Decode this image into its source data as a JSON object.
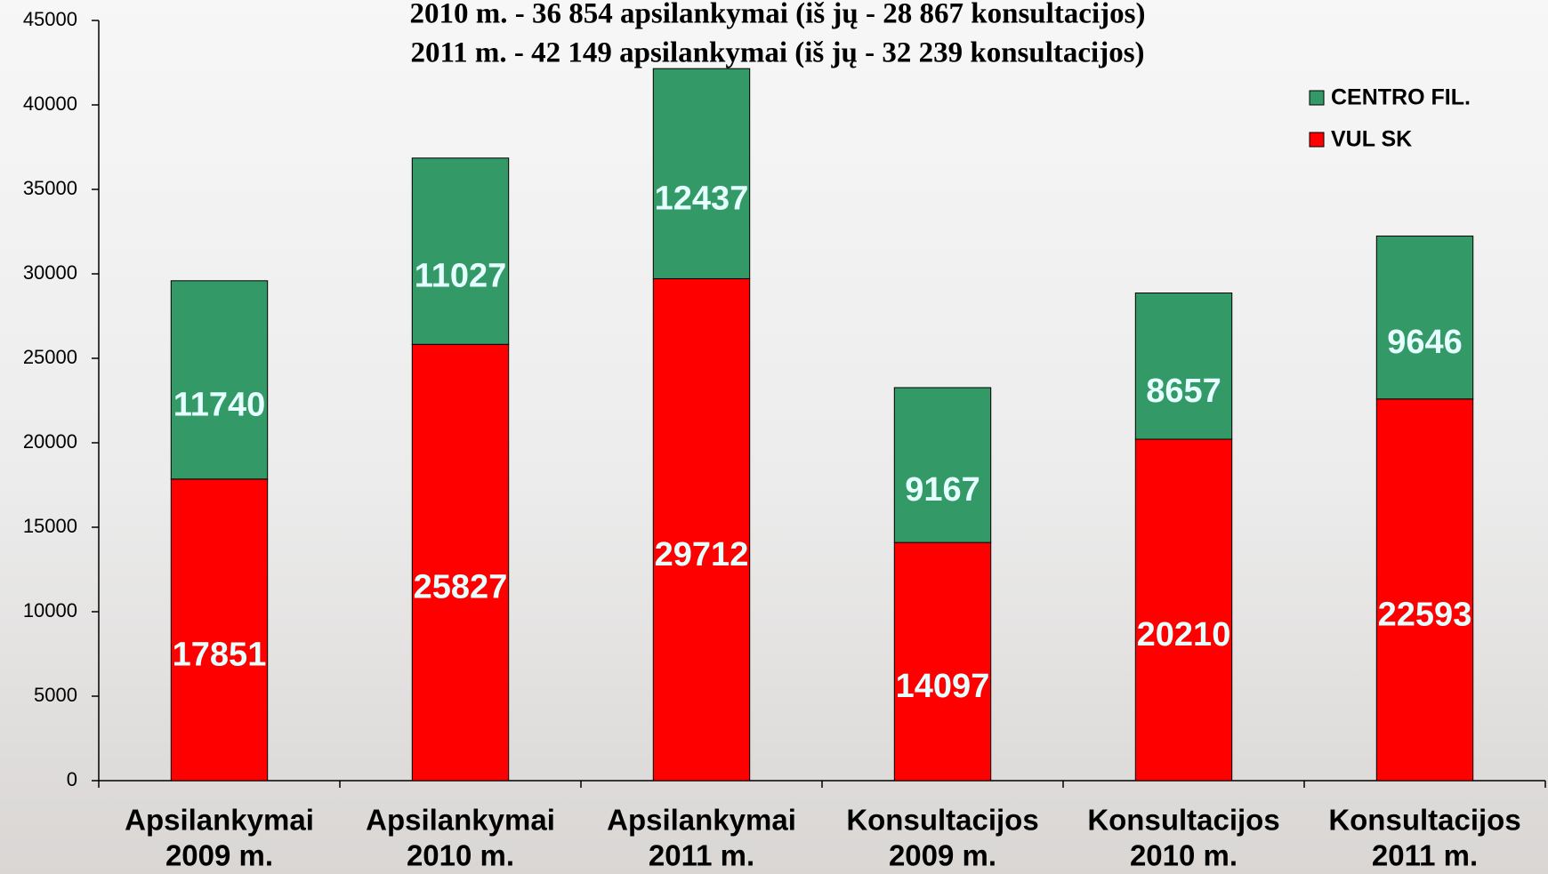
{
  "chart_data": {
    "type": "stacked_bar",
    "title_lines": [
      "2010 m. - 36 854 apsilankymai  (iš jų - 28 867 konsultacijos)",
      "2011 m. - 42 149 apsilankymai  (iš jų - 32 239 konsultacijos)"
    ],
    "categories": [
      [
        "Apsilankymai",
        "2009 m."
      ],
      [
        "Apsilankymai",
        "2010 m."
      ],
      [
        "Apsilankymai",
        "2011 m."
      ],
      [
        "Konsultacijos",
        "2009 m."
      ],
      [
        "Konsultacijos",
        "2010 m."
      ],
      [
        "Konsultacijos",
        "2011 m."
      ]
    ],
    "series": [
      {
        "name": "VUL SK",
        "color": "#ff0000",
        "values": [
          17851,
          25827,
          29712,
          14097,
          20210,
          22593
        ]
      },
      {
        "name": "CENTRO FIL.",
        "color": "#339966",
        "values": [
          11740,
          11027,
          12437,
          9167,
          8657,
          9646
        ]
      }
    ],
    "ylim": [
      0,
      45000
    ],
    "yticks": [
      0,
      5000,
      10000,
      15000,
      20000,
      25000,
      30000,
      35000,
      40000,
      45000
    ],
    "legend": "top-right"
  }
}
